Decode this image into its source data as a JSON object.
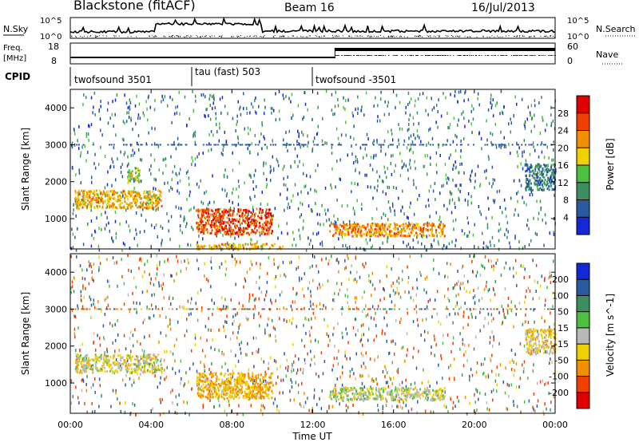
{
  "header": {
    "station": "Blackstone (fitACF)",
    "beam": "Beam 16",
    "date": "16/Jul/2013"
  },
  "noise_panel": {
    "left_label": "N.Sky",
    "left_ticks": [
      "10^5",
      "10^0"
    ],
    "right_label": "N.Search",
    "right_ticks": [
      "10^5",
      "10^0"
    ]
  },
  "freq_panel": {
    "left_label_1": "Freq.",
    "left_label_2": "[MHz]",
    "left_ticks": [
      "18",
      "8"
    ],
    "right_label": "Nave",
    "right_ticks": [
      "60",
      "0"
    ]
  },
  "cpid": {
    "label": "CPID",
    "segments": [
      {
        "name": "twofsound 3501",
        "start_hour": 0
      },
      {
        "name": "tau (fast) 503",
        "start_hour": 6
      },
      {
        "name": "twofsound -3501",
        "start_hour": 12
      }
    ]
  },
  "x_axis": {
    "title": "Time UT",
    "ticks": [
      "00:00",
      "04:00",
      "08:00",
      "12:00",
      "16:00",
      "20:00",
      "00:00"
    ]
  },
  "chart_data": [
    {
      "type": "heatmap",
      "title": "Power",
      "ylabel": "Slant Range [km]",
      "xlabel": "Time UT",
      "xlim": [
        0,
        24
      ],
      "ylim": [
        180,
        4500
      ],
      "y_ticks": [
        1000,
        2000,
        3000,
        4000
      ],
      "colorbar": {
        "label": "Power [dB]",
        "ticks": [
          4,
          8,
          12,
          16,
          20,
          24,
          28
        ],
        "colors": [
          "#1428d8",
          "#2c5aa0",
          "#3c9060",
          "#4cc040",
          "#f0d000",
          "#f09000",
          "#f04000",
          "#e00000"
        ]
      },
      "regions": [
        {
          "t0": 0.2,
          "t1": 4.5,
          "r0": 1300,
          "r1": 1800,
          "level": 20
        },
        {
          "t0": 2.8,
          "t1": 3.4,
          "r0": 2000,
          "r1": 2400,
          "level": 16
        },
        {
          "t0": 6.2,
          "t1": 10.0,
          "r0": 600,
          "r1": 1300,
          "level": 26
        },
        {
          "t0": 6.2,
          "t1": 10.5,
          "r0": 200,
          "r1": 350,
          "level": 20
        },
        {
          "t0": 12.8,
          "t1": 18.5,
          "r0": 550,
          "r1": 900,
          "level": 22
        },
        {
          "t0": 22.5,
          "t1": 24.0,
          "r0": 1800,
          "r1": 2500,
          "level": 8
        }
      ]
    },
    {
      "type": "heatmap",
      "title": "Velocity",
      "ylabel": "Slant Range [km]",
      "xlabel": "Time UT",
      "xlim": [
        0,
        24
      ],
      "ylim": [
        180,
        4500
      ],
      "y_ticks": [
        1000,
        2000,
        3000,
        4000
      ],
      "colorbar": {
        "label": "Velocity [m s^-1]",
        "ticks": [
          200,
          100,
          50,
          15,
          -15,
          -50,
          -100,
          -200
        ],
        "colors": [
          "#1428d8",
          "#2c5aa0",
          "#3c9060",
          "#4cc040",
          "#b8b8b8",
          "#f0d000",
          "#f09000",
          "#f04000",
          "#e00000"
        ]
      },
      "regions": [
        {
          "t0": 0.2,
          "t1": 4.5,
          "r0": 1300,
          "r1": 1800,
          "level": -15
        },
        {
          "t0": 6.2,
          "t1": 10.0,
          "r0": 600,
          "r1": 1300,
          "level": -50
        },
        {
          "t0": 12.8,
          "t1": 18.5,
          "r0": 550,
          "r1": 900,
          "level": 0
        },
        {
          "t0": 22.5,
          "t1": 24.0,
          "r0": 1800,
          "r1": 2500,
          "level": -30
        }
      ]
    }
  ]
}
